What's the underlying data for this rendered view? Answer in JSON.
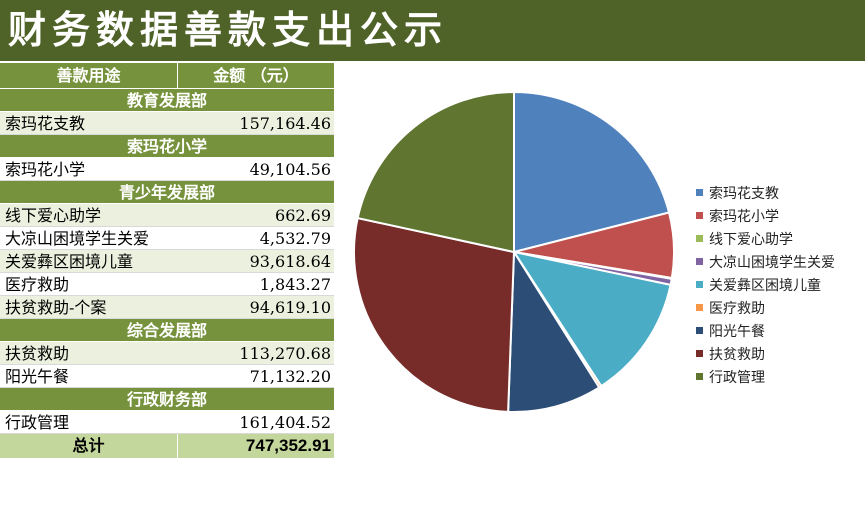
{
  "title": "财务数据善款支出公示",
  "table": {
    "header": {
      "purpose": "善款用途",
      "amount": "金额 （元）"
    },
    "sections": [
      {
        "name": "教育发展部",
        "items": [
          {
            "label": "索玛花支教",
            "amount": "157,164.46"
          }
        ]
      },
      {
        "name": "索玛花小学",
        "items": [
          {
            "label": "索玛花小学",
            "amount": "49,104.56"
          }
        ]
      },
      {
        "name": "青少年发展部",
        "items": [
          {
            "label": "线下爱心助学",
            "amount": "662.69"
          },
          {
            "label": "大凉山困境学生关爱",
            "amount": "4,532.79"
          },
          {
            "label": "关爱彝区困境儿童",
            "amount": "93,618.64"
          },
          {
            "label": "医疗救助",
            "amount": "1,843.27"
          },
          {
            "label": "扶贫救助-个案",
            "amount": "94,619.10"
          }
        ]
      },
      {
        "name": "综合发展部",
        "items": [
          {
            "label": "扶贫救助",
            "amount": "113,270.68"
          },
          {
            "label": "阳光午餐",
            "amount": "71,132.20"
          }
        ]
      },
      {
        "name": "行政财务部",
        "items": [
          {
            "label": "行政管理",
            "amount": "161,404.52"
          }
        ]
      }
    ],
    "total": {
      "label": "总计",
      "amount": "747,352.91"
    }
  },
  "chart_data": {
    "type": "pie",
    "title": "",
    "legend_position": "right",
    "slices": [
      {
        "name": "索玛花支教",
        "value": 157164.46,
        "color": "#4f81bd"
      },
      {
        "name": "索玛花小学",
        "value": 49104.56,
        "color": "#c0504d"
      },
      {
        "name": "线下爱心助学",
        "value": 662.69,
        "color": "#9bbb59"
      },
      {
        "name": "大凉山困境学生关爱",
        "value": 4532.79,
        "color": "#8064a2"
      },
      {
        "name": "关爱彝区困境儿童",
        "value": 93618.64,
        "color": "#4bacc6"
      },
      {
        "name": "医疗救助",
        "value": 1843.27,
        "color": "#f79646"
      },
      {
        "name": "阳光午餐",
        "value": 71132.2,
        "color": "#2c4d75"
      },
      {
        "name": "扶贫救助",
        "value": 207889.78,
        "color": "#772c2a"
      },
      {
        "name": "行政管理",
        "value": 161404.52,
        "color": "#5f7530"
      }
    ]
  }
}
